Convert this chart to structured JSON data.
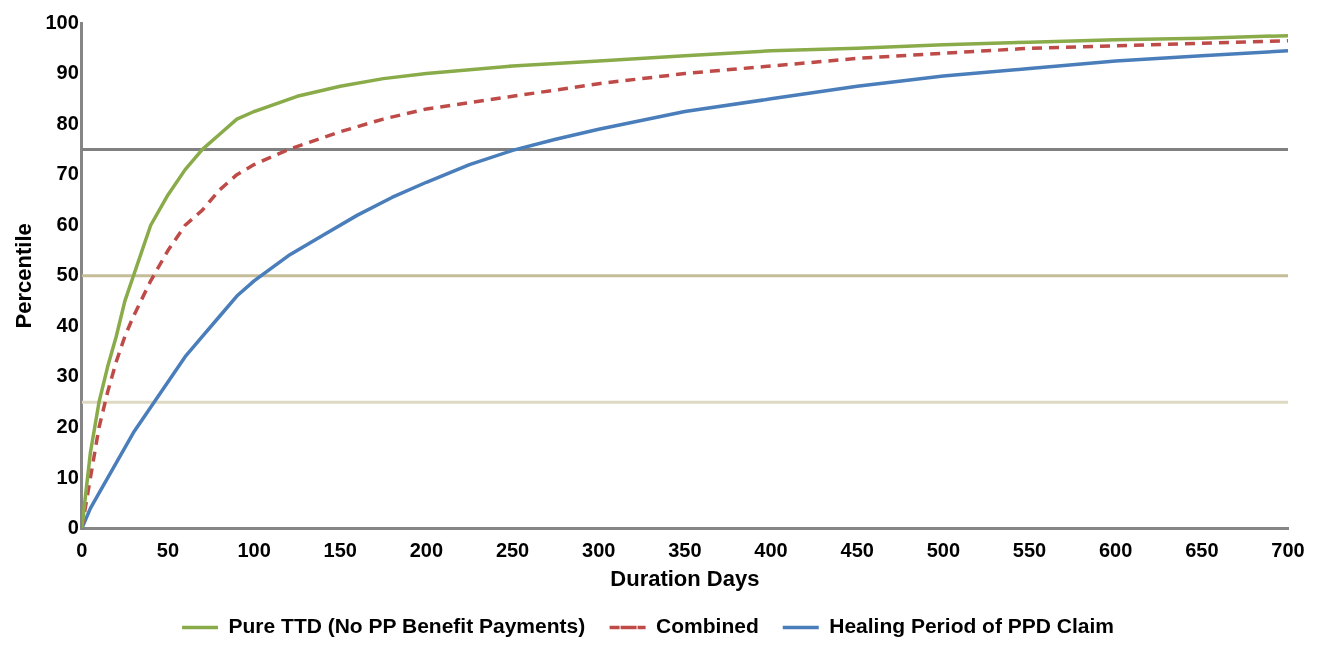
{
  "chart_data": {
    "type": "line",
    "xlabel": "Duration Days",
    "ylabel": "Percentile",
    "xlim": [
      0,
      700
    ],
    "xticks": [
      0,
      50,
      100,
      150,
      200,
      250,
      300,
      350,
      400,
      450,
      500,
      550,
      600,
      650,
      700
    ],
    "ylim": [
      0,
      100
    ],
    "yticks": [
      0,
      10,
      20,
      30,
      40,
      50,
      60,
      70,
      80,
      90,
      100
    ],
    "grid": false,
    "legend": "bottom",
    "marker": "none",
    "ref_lines": [
      {
        "axis": "y",
        "value": 75,
        "color": "#808080"
      },
      {
        "axis": "y",
        "value": 50,
        "color": "#c4bd97"
      },
      {
        "axis": "y",
        "value": 25,
        "color": "#ddd9c3"
      }
    ],
    "series": [
      {
        "name": "Pure TTD (No PP Benefit Payments)",
        "color": "#8aab4a",
        "line_style": "solid",
        "x": [
          0,
          5,
          10,
          15,
          20,
          25,
          30,
          35,
          40,
          50,
          60,
          70,
          80,
          90,
          100,
          125,
          150,
          175,
          200,
          250,
          300,
          350,
          400,
          450,
          500,
          550,
          600,
          650,
          700
        ],
        "values": [
          0,
          15,
          25,
          32,
          38,
          45,
          50,
          55,
          60,
          66,
          71,
          75,
          78,
          81,
          82.5,
          85.5,
          87.5,
          89,
          90,
          91.5,
          92.5,
          93.5,
          94.5,
          95,
          95.7,
          96.2,
          96.7,
          97,
          97.5
        ]
      },
      {
        "name": "Combined",
        "color": "#be4b48",
        "line_style": "dashed",
        "x": [
          0,
          5,
          10,
          15,
          20,
          25,
          30,
          40,
          50,
          60,
          70,
          80,
          90,
          100,
          120,
          150,
          175,
          200,
          250,
          300,
          350,
          400,
          450,
          500,
          550,
          600,
          650,
          700
        ],
        "values": [
          0,
          10,
          20,
          27,
          33,
          38,
          42,
          49,
          55,
          60,
          63,
          67,
          70,
          72,
          75,
          78.5,
          81,
          83,
          85.5,
          88,
          90,
          91.5,
          93,
          94,
          95,
          95.5,
          96,
          96.5
        ]
      },
      {
        "name": "Healing Period of PPD Claim",
        "color": "#4a7ebb",
        "line_style": "solid",
        "x": [
          0,
          5,
          10,
          20,
          30,
          40,
          50,
          60,
          70,
          80,
          90,
          100,
          120,
          140,
          160,
          180,
          200,
          225,
          250,
          275,
          300,
          350,
          400,
          450,
          500,
          550,
          600,
          650,
          700
        ],
        "values": [
          0,
          4,
          7,
          13,
          19,
          24,
          29,
          34,
          38,
          42,
          46,
          49,
          54,
          58,
          62,
          65.5,
          68.5,
          72,
          74.8,
          77,
          79,
          82.5,
          85,
          87.5,
          89.5,
          91,
          92.5,
          93.5,
          94.5
        ]
      }
    ]
  }
}
